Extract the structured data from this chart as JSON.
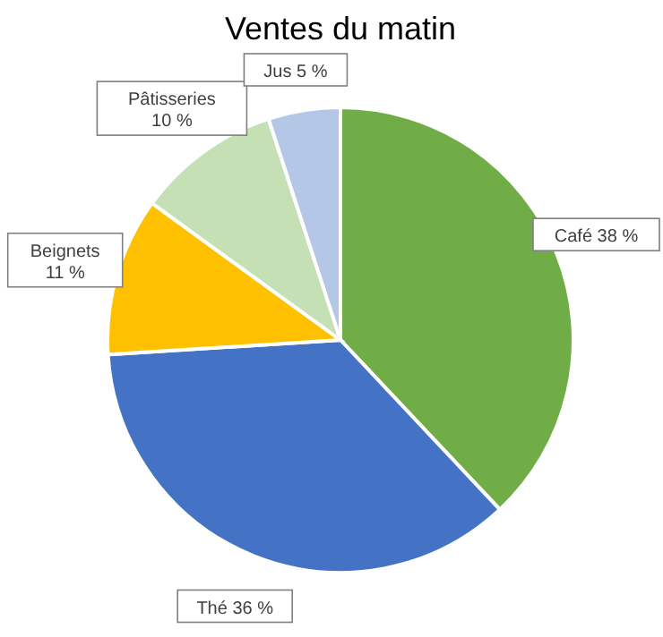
{
  "chart_data": {
    "type": "pie",
    "title": "Ventes du matin",
    "categories": [
      "Café",
      "Thé",
      "Beignets",
      "Pâtisseries",
      "Jus"
    ],
    "values": [
      38,
      36,
      11,
      10,
      5
    ],
    "colors": [
      "#70ad47",
      "#4472c4",
      "#ffc000",
      "#c5e0b4",
      "#b4c7e7"
    ],
    "value_labels": [
      "38 %",
      "36 %",
      "11 %",
      "10 %",
      "5 %"
    ]
  }
}
